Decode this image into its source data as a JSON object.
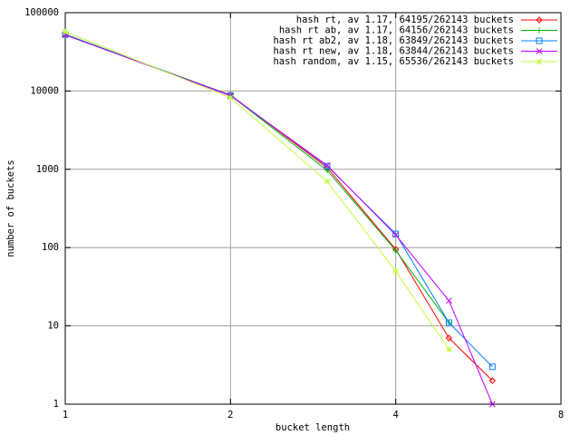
{
  "chart_data": {
    "type": "line",
    "x_label": "bucket length",
    "y_label": "number of buckets",
    "x": [
      1,
      2,
      3,
      4,
      5,
      6
    ],
    "xlim": [
      1,
      8
    ],
    "xticks": [
      1,
      2,
      4,
      8
    ],
    "ylim": [
      1,
      100000
    ],
    "yticks": [
      1,
      10,
      100,
      1000,
      10000,
      100000
    ],
    "x_log": true,
    "y_log": true,
    "grid": true,
    "legend": "top-right",
    "series": [
      {
        "name": "hash rt, av 1.17, 64195/262143 buckets",
        "color": "#ff0000",
        "marker": "diamond",
        "values": [
          52000,
          8900,
          1050,
          95,
          7,
          2
        ]
      },
      {
        "name": "hash rt ab, av 1.17, 64156/262143 buckets",
        "color": "#00b000",
        "marker": "plus",
        "values": [
          53000,
          8800,
          970,
          92,
          11,
          null
        ]
      },
      {
        "name": "hash rt ab2, av 1.18, 63849/262143 buckets",
        "color": "#0080ff",
        "marker": "square",
        "values": [
          52500,
          8800,
          1100,
          150,
          11,
          3
        ]
      },
      {
        "name": "hash rt new, av 1.18, 63844/262143 buckets",
        "color": "#c000ff",
        "marker": "cross",
        "values": [
          52000,
          8700,
          1120,
          145,
          21,
          1
        ]
      },
      {
        "name": "hash random, av 1.15, 65536/262143 buckets",
        "color": "#c0ff40",
        "marker": "star",
        "values": [
          57000,
          8200,
          700,
          50,
          5,
          null
        ]
      }
    ]
  }
}
